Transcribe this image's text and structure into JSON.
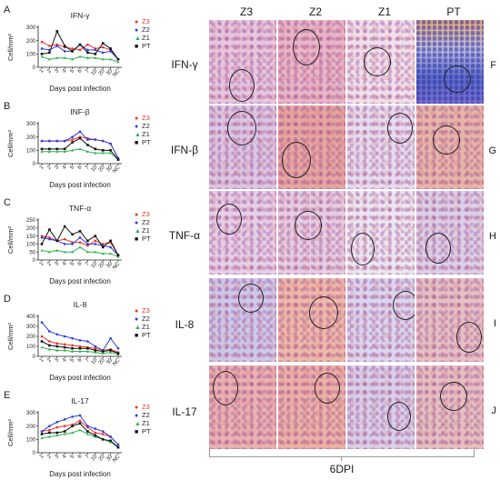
{
  "panel_letters_left": [
    "A",
    "B",
    "C",
    "D",
    "E"
  ],
  "panel_letters_right": [
    "F",
    "G",
    "H",
    "I",
    "J"
  ],
  "columns": [
    "Z3",
    "Z2",
    "Z1",
    "PT"
  ],
  "rows": [
    "IFN-γ",
    "IFN-β",
    "TNF-α",
    "IL-8",
    "IL-17"
  ],
  "bottom_label": "6DPI",
  "colors": {
    "Z3": "#e8322a",
    "Z2": "#2a3fd6",
    "Z1": "#2fb24a",
    "PT": "#111111"
  },
  "chart_data": [
    {
      "type": "line",
      "letter": "A",
      "title": "IFN-γ",
      "xlabel": "Days post infection",
      "ylabel": "Cell/mm²",
      "categories": [
        "1",
        "2",
        "3",
        "4",
        "5",
        "6",
        "7",
        "10",
        "20",
        "30",
        "NC"
      ],
      "yticks": [
        0,
        100,
        200,
        300
      ],
      "ylim": [
        0,
        300
      ],
      "series": [
        {
          "name": "Z3",
          "values": [
            190,
            160,
            170,
            150,
            140,
            130,
            170,
            140,
            150,
            130,
            60
          ]
        },
        {
          "name": "Z2",
          "values": [
            140,
            130,
            160,
            120,
            120,
            170,
            130,
            130,
            110,
            120,
            60
          ]
        },
        {
          "name": "Z1",
          "values": [
            80,
            60,
            70,
            70,
            60,
            80,
            70,
            70,
            60,
            60,
            40
          ]
        },
        {
          "name": "PT",
          "values": [
            100,
            110,
            270,
            160,
            120,
            170,
            110,
            100,
            180,
            140,
            60
          ]
        }
      ]
    },
    {
      "type": "line",
      "letter": "B",
      "title": "INF-β",
      "xlabel": "Days post infection",
      "ylabel": "Cell/mm²",
      "categories": [
        "1",
        "2",
        "3",
        "4",
        "5",
        "6",
        "7",
        "10",
        "20",
        "30",
        "NC"
      ],
      "yticks": [
        0,
        100,
        200,
        300
      ],
      "ylim": [
        0,
        300
      ],
      "series": [
        {
          "name": "Z3",
          "values": [
            170,
            170,
            170,
            170,
            180,
            200,
            190,
            180,
            170,
            150,
            40
          ]
        },
        {
          "name": "Z2",
          "values": [
            170,
            170,
            170,
            170,
            200,
            240,
            180,
            180,
            170,
            150,
            40
          ]
        },
        {
          "name": "Z1",
          "values": [
            90,
            90,
            90,
            90,
            100,
            110,
            90,
            80,
            80,
            80,
            30
          ]
        },
        {
          "name": "PT",
          "values": [
            110,
            110,
            110,
            110,
            160,
            190,
            140,
            110,
            100,
            100,
            30
          ]
        }
      ]
    },
    {
      "type": "line",
      "letter": "C",
      "title": "TNF-α",
      "xlabel": "Days post infection",
      "ylabel": "Cell/mm²",
      "categories": [
        "1",
        "2",
        "3",
        "4",
        "5",
        "6",
        "7",
        "10",
        "20",
        "30",
        "NC"
      ],
      "yticks": [
        0,
        50,
        100,
        150,
        200,
        250
      ],
      "ylim": [
        0,
        250
      ],
      "series": [
        {
          "name": "Z3",
          "values": [
            150,
            140,
            120,
            130,
            110,
            110,
            90,
            120,
            100,
            110,
            30
          ]
        },
        {
          "name": "Z2",
          "values": [
            140,
            130,
            120,
            100,
            100,
            140,
            100,
            100,
            90,
            80,
            30
          ]
        },
        {
          "name": "Z1",
          "values": [
            60,
            50,
            60,
            50,
            50,
            80,
            50,
            50,
            40,
            40,
            20
          ]
        },
        {
          "name": "PT",
          "values": [
            100,
            190,
            120,
            210,
            160,
            180,
            120,
            150,
            80,
            120,
            30
          ]
        }
      ]
    },
    {
      "type": "line",
      "letter": "D",
      "title": "IL-8",
      "xlabel": "Days post infection",
      "ylabel": "Cell/mm²",
      "categories": [
        "1",
        "2",
        "3",
        "4",
        "5",
        "6",
        "7",
        "10",
        "20",
        "30",
        "NC"
      ],
      "yticks": [
        0,
        100,
        200,
        300,
        400
      ],
      "ylim": [
        0,
        400
      ],
      "series": [
        {
          "name": "Z3",
          "values": [
            200,
            150,
            130,
            120,
            110,
            100,
            90,
            80,
            60,
            70,
            40
          ]
        },
        {
          "name": "Z2",
          "values": [
            340,
            250,
            220,
            200,
            180,
            160,
            150,
            100,
            60,
            180,
            80
          ]
        },
        {
          "name": "Z1",
          "values": [
            90,
            70,
            60,
            60,
            50,
            50,
            50,
            40,
            30,
            40,
            20
          ]
        },
        {
          "name": "PT",
          "values": [
            150,
            110,
            100,
            90,
            80,
            80,
            80,
            60,
            50,
            60,
            30
          ]
        }
      ]
    },
    {
      "type": "line",
      "letter": "E",
      "title": "IL-17",
      "xlabel": "Days post infection",
      "ylabel": "Cell/mm²",
      "categories": [
        "1",
        "2",
        "3",
        "4",
        "5",
        "6",
        "7",
        "10",
        "20",
        "30",
        "NC"
      ],
      "yticks": [
        0,
        100,
        200,
        300
      ],
      "ylim": [
        0,
        300
      ],
      "series": [
        {
          "name": "Z3",
          "values": [
            160,
            170,
            190,
            200,
            210,
            240,
            190,
            150,
            140,
            120,
            60
          ]
        },
        {
          "name": "Z2",
          "values": [
            160,
            200,
            230,
            250,
            270,
            280,
            200,
            180,
            160,
            120,
            60
          ]
        },
        {
          "name": "Z1",
          "values": [
            110,
            120,
            130,
            140,
            150,
            170,
            140,
            120,
            100,
            80,
            40
          ]
        },
        {
          "name": "PT",
          "values": [
            140,
            150,
            150,
            160,
            200,
            220,
            160,
            130,
            100,
            90,
            40
          ]
        }
      ]
    }
  ]
}
